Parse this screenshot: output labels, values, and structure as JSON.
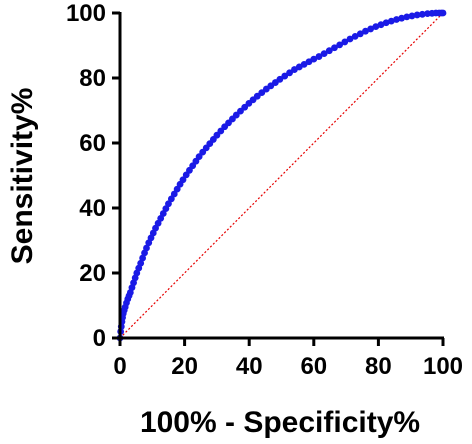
{
  "chart_data": {
    "type": "scatter",
    "title": "",
    "xlabel": "100% - Specificity%",
    "ylabel": "Sensitivity%",
    "xlim": [
      0,
      100
    ],
    "ylim": [
      0,
      100
    ],
    "x_ticks": [
      "0",
      "20",
      "40",
      "60",
      "80",
      "100"
    ],
    "y_ticks": [
      "0",
      "20",
      "40",
      "60",
      "80",
      "100"
    ],
    "grid": false,
    "legend": "none",
    "colors": {
      "points": "#1a1ae6",
      "reference_line": "#e60000",
      "axes": "#000000"
    },
    "reference_line": {
      "x": [
        0,
        100
      ],
      "y": [
        0,
        100
      ]
    },
    "series": [
      {
        "x": [
          0,
          0.2,
          0.4,
          0.6,
          0.8,
          1.0,
          1.3,
          1.6,
          2.0,
          2.4,
          2.8,
          3.2,
          3.7,
          4.2,
          4.7,
          5.2,
          5.8,
          6.4,
          7.0,
          7.6,
          8.2,
          8.9,
          9.6,
          10.3,
          11.0,
          11.8,
          12.6,
          13.4,
          14.2,
          15.0,
          15.9,
          16.8,
          17.7,
          18.6,
          19.5,
          20.5,
          21.5,
          22.5,
          23.5,
          24.5,
          25.6,
          26.7,
          27.8,
          28.9,
          30.0,
          31.2,
          32.4,
          33.6,
          34.8,
          36.0,
          37.3,
          38.6,
          39.9,
          41.2,
          42.5,
          43.9,
          45.3,
          46.7,
          48.1,
          49.5,
          51.0,
          52.5,
          54.0,
          55.5,
          57.0,
          58.5,
          60.0,
          61.6,
          63.2,
          64.8,
          66.4,
          68.0,
          69.6,
          71.2,
          72.8,
          74.4,
          76.0,
          77.6,
          79.2,
          80.8,
          82.4,
          84.0,
          85.6,
          87.2,
          88.8,
          90.4,
          92.0,
          93.6,
          95.2,
          96.6,
          97.8,
          98.8,
          99.5,
          100
        ],
        "y": [
          0,
          2.0,
          3.5,
          5.0,
          6.3,
          7.5,
          8.5,
          9.5,
          10.8,
          12.0,
          13.0,
          14.0,
          15.5,
          17.0,
          18.5,
          20.0,
          21.5,
          23.0,
          24.6,
          26.2,
          27.7,
          29.3,
          30.8,
          32.3,
          33.8,
          35.3,
          36.8,
          38.3,
          39.8,
          41.3,
          42.8,
          44.3,
          45.8,
          47.3,
          48.7,
          50.2,
          51.6,
          53.0,
          54.4,
          55.8,
          57.2,
          58.5,
          59.8,
          61.1,
          62.4,
          63.7,
          65.0,
          66.2,
          67.4,
          68.6,
          69.8,
          71.0,
          72.2,
          73.3,
          74.4,
          75.5,
          76.6,
          77.6,
          78.6,
          79.6,
          80.6,
          81.6,
          82.6,
          83.4,
          84.2,
          85.0,
          85.8,
          86.6,
          87.5,
          88.4,
          89.3,
          90.2,
          91.1,
          92.0,
          92.8,
          93.6,
          94.4,
          95.1,
          95.8,
          96.4,
          97.0,
          97.5,
          98.0,
          98.4,
          98.8,
          99.1,
          99.4,
          99.6,
          99.8,
          99.9,
          100,
          100,
          100,
          100
        ]
      }
    ]
  }
}
